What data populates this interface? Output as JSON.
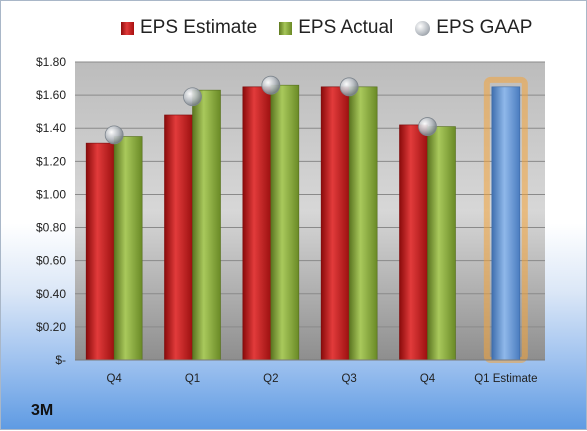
{
  "company": "3M",
  "chart_data": {
    "type": "bar",
    "categories": [
      "Q4",
      "Q1",
      "Q2",
      "Q3",
      "Q4",
      "Q1 Estimate"
    ],
    "series": [
      {
        "name": "EPS Estimate",
        "values": [
          1.31,
          1.48,
          1.65,
          1.65,
          1.42,
          null
        ],
        "color": "#c0191b"
      },
      {
        "name": "EPS Actual",
        "values": [
          1.35,
          1.63,
          1.66,
          1.65,
          1.41,
          null
        ],
        "color": "#8fb03f"
      },
      {
        "name": "EPS GAAP",
        "values": [
          1.36,
          1.59,
          1.66,
          1.65,
          1.41,
          null
        ],
        "color": "#b9bec4",
        "marker": "sphere"
      }
    ],
    "forecast": {
      "category": "Q1 Estimate",
      "value": 1.65,
      "color": "#6f9fd8",
      "highlight_color": "#f4a43a"
    },
    "y_ticks": [
      "$-",
      "$0.20",
      "$0.40",
      "$0.60",
      "$0.80",
      "$1.00",
      "$1.20",
      "$1.40",
      "$1.60",
      "$1.80"
    ],
    "ylim": [
      0,
      1.8
    ],
    "grid": true,
    "legend_position": "top"
  }
}
